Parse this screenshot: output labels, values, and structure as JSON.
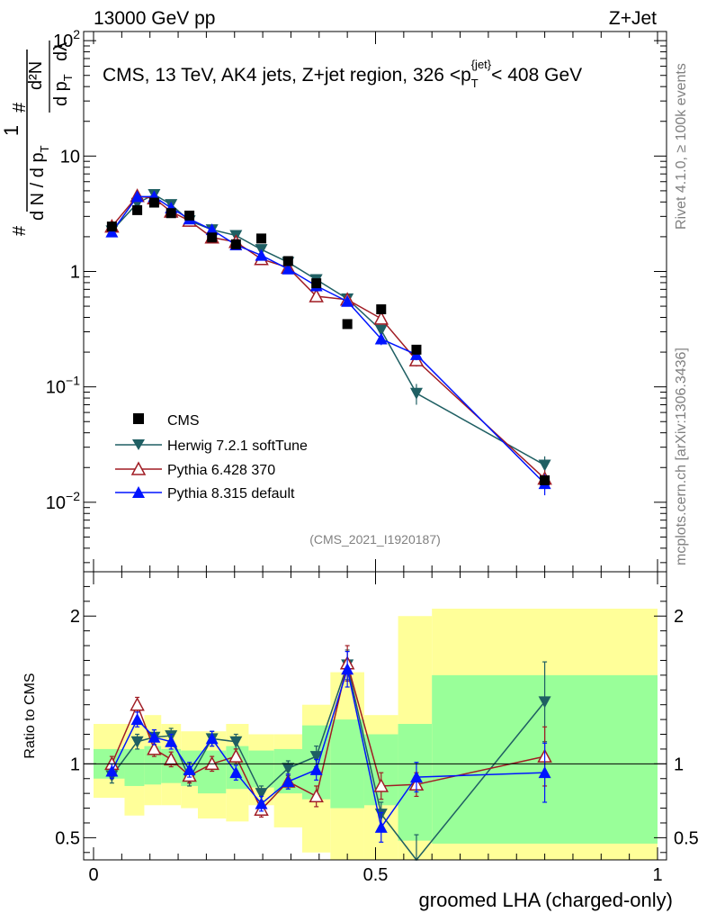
{
  "header": {
    "left": "13000 GeV pp",
    "right": "Z+Jet"
  },
  "side_labels": {
    "rivet": "Rivet 4.1.0, ≥ 100k events",
    "mcplots": "mcplots.cern.ch [arXiv:1306.3436]"
  },
  "analysis_id": "(CMS_2021_I1920187)",
  "colors": {
    "cms": "#000000",
    "herwig": "#1f5f63",
    "pythia6": "#a01c24",
    "pythia8": "#0014ff",
    "band_outer": "#ffff99",
    "band_inner": "#99ff99"
  },
  "chart_data": [
    {
      "type": "scatter",
      "scale": "log",
      "title": "CMS, 13 TeV, AK4 jets, Z+jet region, 326 <p_T^{jet}< 408 GeV",
      "title_parts": {
        "main": "CMS, 13 TeV, AK4 jets, Z+jet region, 326 <p",
        "sub": "T",
        "sup": "{jet}",
        "tail": "< 408 GeV"
      },
      "ylabel": "1/(dN/dp_T) d²N/(dp_T dλ)",
      "ylabel_parts": {
        "frac_one": "1",
        "den": "d N / d p",
        "hash": "#",
        "num_top": "d²N",
        "num_bottom": "d p",
        "lambda": "dλ",
        "sub": "T"
      },
      "xlim": [
        0,
        1
      ],
      "ylim": [
        0.0025,
        120
      ],
      "yticks": [
        {
          "value": 100,
          "base": "10",
          "exp": "2"
        },
        {
          "value": 10,
          "base": "10",
          "exp": ""
        },
        {
          "value": 1,
          "base": "1",
          "exp": ""
        },
        {
          "value": 0.1,
          "base": "10",
          "exp": "−1"
        },
        {
          "value": 0.01,
          "base": "10",
          "exp": "−2"
        }
      ],
      "x": [
        0.0325,
        0.0775,
        0.1075,
        0.1375,
        0.17,
        0.21,
        0.2525,
        0.2975,
        0.345,
        0.395,
        0.45,
        0.51,
        0.5725,
        0.8
      ],
      "series": [
        {
          "name": "CMS",
          "marker": "square",
          "values": [
            2.45,
            3.4,
            3.95,
            3.2,
            3.05,
            1.97,
            1.72,
            1.93,
            1.23,
            0.79,
            0.35,
            0.47,
            0.21,
            0.0155
          ]
        },
        {
          "name": "Herwig 7.2.1 softTune",
          "marker": "triangle-down",
          "values": [
            2.25,
            3.9,
            4.65,
            3.8,
            2.75,
            2.3,
            2.05,
            1.55,
            1.2,
            0.85,
            0.58,
            0.31,
            0.088,
            0.021
          ],
          "err": [
            0.1,
            0.15,
            0.15,
            0.12,
            0.1,
            0.1,
            0.1,
            0.08,
            0.06,
            0.05,
            0.04,
            0.03,
            0.018,
            0.004
          ]
        },
        {
          "name": "Pythia 6.428 370",
          "marker": "triangle-open",
          "values": [
            2.45,
            4.5,
            4.3,
            3.3,
            2.75,
            1.97,
            1.8,
            1.28,
            1.08,
            0.61,
            0.57,
            0.39,
            0.17,
            0.016
          ],
          "err": [
            0.1,
            0.18,
            0.15,
            0.12,
            0.1,
            0.08,
            0.08,
            0.07,
            0.05,
            0.04,
            0.04,
            0.03,
            0.02,
            0.003
          ]
        },
        {
          "name": "Pythia 8.315 default",
          "marker": "triangle-up",
          "values": [
            2.2,
            4.45,
            4.45,
            3.55,
            2.85,
            2.3,
            1.7,
            1.38,
            1.05,
            0.75,
            0.55,
            0.26,
            0.19,
            0.0145
          ],
          "err": [
            0.1,
            0.18,
            0.15,
            0.12,
            0.1,
            0.1,
            0.08,
            0.07,
            0.05,
            0.04,
            0.04,
            0.03,
            0.02,
            0.003
          ]
        }
      ],
      "legend": [
        "CMS",
        "Herwig 7.2.1 softTune",
        "Pythia 6.428 370",
        "Pythia 8.315 default"
      ],
      "legend_position": "bottom-left"
    },
    {
      "type": "line",
      "ylabel": "Ratio to CMS",
      "xlabel": "groomed LHA (charged-only)",
      "xlim": [
        0,
        1
      ],
      "ylim": [
        0.35,
        2.3
      ],
      "xticks": [
        0,
        0.5,
        1
      ],
      "xtick_labels": [
        "0",
        "0.5",
        "1"
      ],
      "yticks": [
        0.5,
        1,
        2
      ],
      "ytick_labels": [
        "0.5",
        "1",
        "2"
      ],
      "bins": [
        [
          0.0,
          0.055
        ],
        [
          0.055,
          0.09
        ],
        [
          0.09,
          0.12
        ],
        [
          0.12,
          0.155
        ],
        [
          0.155,
          0.185
        ],
        [
          0.185,
          0.235
        ],
        [
          0.235,
          0.275
        ],
        [
          0.275,
          0.32
        ],
        [
          0.32,
          0.37
        ],
        [
          0.37,
          0.42
        ],
        [
          0.42,
          0.48
        ],
        [
          0.48,
          0.54
        ],
        [
          0.54,
          0.6
        ],
        [
          0.6,
          1.0
        ]
      ],
      "band_outer": [
        [
          0.77,
          1.27
        ],
        [
          0.65,
          1.27
        ],
        [
          0.72,
          1.33
        ],
        [
          0.72,
          1.27
        ],
        [
          0.7,
          1.22
        ],
        [
          0.63,
          1.22
        ],
        [
          0.61,
          1.27
        ],
        [
          0.72,
          1.2
        ],
        [
          0.57,
          1.2
        ],
        [
          0.4,
          1.4
        ],
        [
          0.18,
          1.62
        ],
        [
          0.18,
          1.33
        ],
        [
          0.18,
          2.0
        ],
        [
          0.18,
          2.05
        ]
      ],
      "band_inner": [
        [
          0.9,
          1.1
        ],
        [
          0.85,
          1.1
        ],
        [
          0.86,
          1.12
        ],
        [
          0.87,
          1.1
        ],
        [
          0.85,
          1.09
        ],
        [
          0.8,
          1.09
        ],
        [
          0.83,
          1.12
        ],
        [
          0.84,
          1.09
        ],
        [
          0.8,
          1.1
        ],
        [
          0.76,
          1.26
        ],
        [
          0.7,
          1.3
        ],
        [
          0.72,
          1.2
        ],
        [
          0.48,
          1.27
        ],
        [
          0.46,
          1.6
        ]
      ],
      "series": [
        {
          "name": "Herwig 7.2.1 softTune",
          "values": [
            0.92,
            1.15,
            1.18,
            1.19,
            0.9,
            1.17,
            1.15,
            0.8,
            0.97,
            1.05,
            1.67,
            0.66,
            0.34,
            1.42
          ],
          "err": [
            0.05,
            0.05,
            0.05,
            0.05,
            0.05,
            0.05,
            0.05,
            0.05,
            0.05,
            0.07,
            0.1,
            0.08,
            0.18,
            0.27
          ]
        },
        {
          "name": "Pythia 6.428 370",
          "values": [
            1.0,
            1.4,
            1.1,
            1.03,
            0.92,
            1.0,
            1.05,
            0.69,
            0.88,
            0.78,
            1.68,
            0.85,
            0.86,
            1.05
          ],
          "err": [
            0.05,
            0.05,
            0.05,
            0.05,
            0.05,
            0.05,
            0.05,
            0.05,
            0.05,
            0.07,
            0.12,
            0.09,
            0.08,
            0.2
          ]
        },
        {
          "name": "Pythia 8.315 default",
          "values": [
            0.95,
            1.3,
            1.18,
            1.15,
            0.96,
            1.17,
            0.94,
            0.73,
            0.88,
            0.96,
            1.64,
            0.57,
            0.91,
            0.94
          ],
          "err": [
            0.05,
            0.05,
            0.05,
            0.05,
            0.05,
            0.05,
            0.05,
            0.05,
            0.05,
            0.07,
            0.12,
            0.1,
            0.1,
            0.2
          ]
        }
      ]
    }
  ]
}
